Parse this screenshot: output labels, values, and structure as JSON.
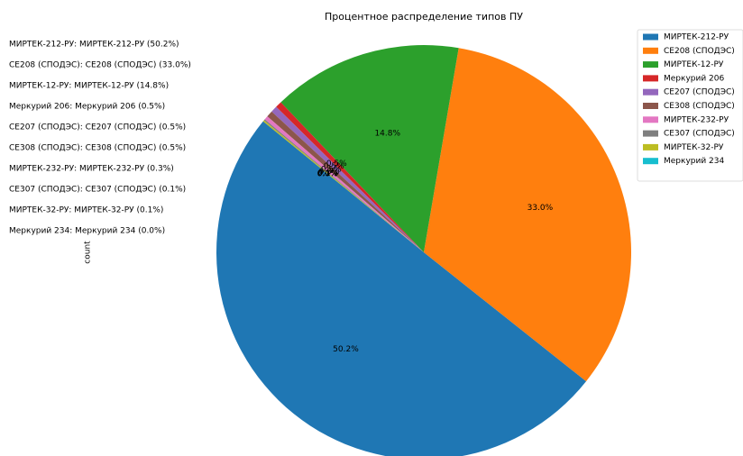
{
  "chart_data": {
    "type": "pie",
    "title": "Процентное распределение типов ПУ",
    "ylabel": "count",
    "categories": [
      "МИРТЕК-212-РУ",
      "СЕ208 (СПОДЭС)",
      "МИРТЕК-12-РУ",
      "Меркурий 206",
      "СЕ207 (СПОДЭС)",
      "СЕ308 (СПОДЭС)",
      "МИРТЕК-232-РУ",
      "СЕ307 (СПОДЭС)",
      "МИРТЕК-32-РУ",
      "Меркурий 234"
    ],
    "values": [
      50.2,
      33.0,
      14.8,
      0.5,
      0.5,
      0.5,
      0.3,
      0.1,
      0.1,
      0.0
    ],
    "value_labels": [
      "50.2%",
      "33.0%",
      "14.8%",
      "0.5%",
      "0.5%",
      "0.5%",
      "0.3%",
      "0.1%",
      "0.1%",
      "0.0%"
    ],
    "colors": [
      "#1f77b4",
      "#ff7f0e",
      "#2ca02c",
      "#d62728",
      "#9467bd",
      "#8c564b",
      "#e377c2",
      "#7f7f7f",
      "#bcbd22",
      "#17becf"
    ],
    "annotations": [
      "МИРТЕК-212-РУ: МИРТЕК-212-РУ (50.2%)",
      "СЕ208 (СПОДЭС): СЕ208 (СПОДЭС) (33.0%)",
      "МИРТЕК-12-РУ: МИРТЕК-12-РУ (14.8%)",
      "Меркурий 206: Меркурий 206 (0.5%)",
      "СЕ207 (СПОДЭС): СЕ207 (СПОДЭС) (0.5%)",
      "СЕ308 (СПОДЭС): СЕ308 (СПОДЭС) (0.5%)",
      "МИРТЕК-232-РУ: МИРТЕК-232-РУ (0.3%)",
      "СЕ307 (СПОДЭС): СЕ307 (СПОДЭС) (0.1%)",
      "МИРТЕК-32-РУ: МИРТЕК-32-РУ (0.1%)",
      "Меркурий 234: Меркурий 234 (0.0%)"
    ],
    "legend": "upper right"
  }
}
